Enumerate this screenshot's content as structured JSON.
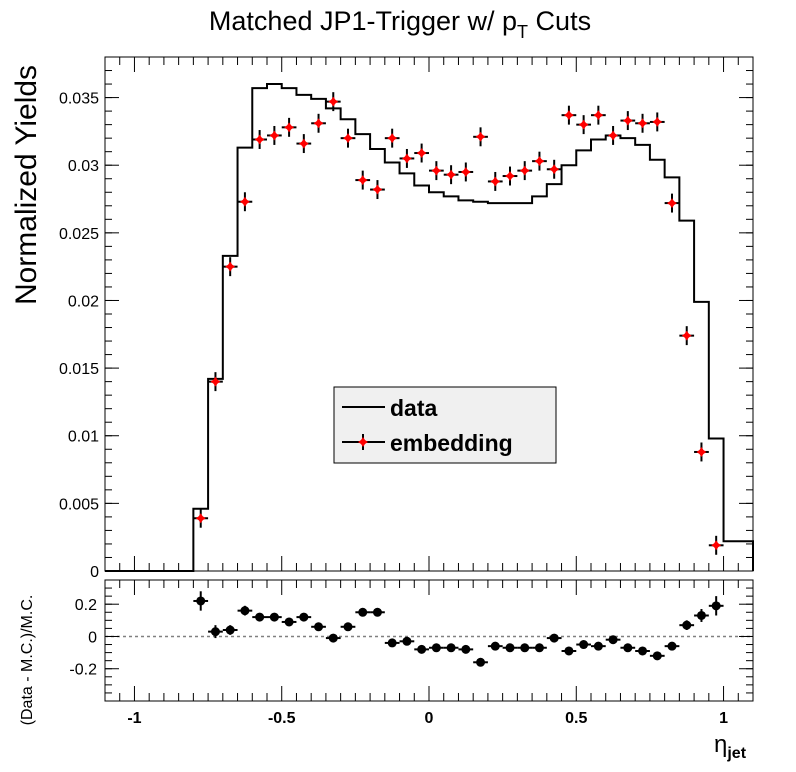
{
  "chart_data": [
    {
      "type": "line",
      "title_main": "Matched JP1-Trigger w/ p",
      "title_sub": "T",
      "title_end": " Cuts",
      "ylabel": "Normalized Yields",
      "xlim": [
        -1.1,
        1.1
      ],
      "ylim": [
        0,
        0.038
      ],
      "y_ticks": [
        0,
        0.005,
        0.01,
        0.015,
        0.02,
        0.025,
        0.03,
        0.035
      ],
      "y_tick_labels": [
        "0",
        "0.005",
        "0.01",
        "0.015",
        "0.02",
        "0.025",
        "0.03",
        "0.035"
      ],
      "legend": {
        "placement": "center",
        "entries": [
          "data",
          "embedding"
        ]
      },
      "series": [
        {
          "name": "data",
          "style": "histogram",
          "color": "#000000",
          "bin_edges": [
            -1.1,
            -0.8,
            -0.75,
            -0.7,
            -0.65,
            -0.6,
            -0.55,
            -0.5,
            -0.45,
            -0.4,
            -0.35,
            -0.3,
            -0.25,
            -0.2,
            -0.15,
            -0.1,
            -0.05,
            0.0,
            0.05,
            0.1,
            0.15,
            0.2,
            0.25,
            0.3,
            0.35,
            0.4,
            0.45,
            0.5,
            0.55,
            0.6,
            0.65,
            0.7,
            0.75,
            0.8,
            0.85,
            0.9,
            0.95,
            1.0,
            1.1
          ],
          "values": [
            0,
            0.0046,
            0.0142,
            0.0233,
            0.0313,
            0.0357,
            0.036,
            0.0357,
            0.0352,
            0.0349,
            0.0342,
            0.0334,
            0.0323,
            0.0312,
            0.0302,
            0.0294,
            0.0285,
            0.028,
            0.0277,
            0.0274,
            0.0273,
            0.0272,
            0.0272,
            0.0272,
            0.0277,
            0.0286,
            0.03,
            0.0311,
            0.0319,
            0.0322,
            0.032,
            0.0315,
            0.0304,
            0.0291,
            0.0259,
            0.0199,
            0.0098,
            0.0022,
            0
          ]
        },
        {
          "name": "embedding",
          "style": "points",
          "color": "#ff0000",
          "x": [
            -0.775,
            -0.725,
            -0.675,
            -0.625,
            -0.575,
            -0.525,
            -0.475,
            -0.425,
            -0.375,
            -0.325,
            -0.275,
            -0.225,
            -0.175,
            -0.125,
            -0.075,
            -0.025,
            0.025,
            0.075,
            0.125,
            0.175,
            0.225,
            0.275,
            0.325,
            0.375,
            0.425,
            0.475,
            0.525,
            0.575,
            0.625,
            0.675,
            0.725,
            0.775,
            0.825,
            0.875,
            0.925,
            0.975
          ],
          "y": [
            0.0039,
            0.014,
            0.0225,
            0.0273,
            0.0319,
            0.0322,
            0.0328,
            0.0316,
            0.0331,
            0.0347,
            0.032,
            0.0289,
            0.0282,
            0.032,
            0.0305,
            0.0309,
            0.0296,
            0.0293,
            0.0295,
            0.0321,
            0.0288,
            0.0292,
            0.0296,
            0.0303,
            0.0297,
            0.0337,
            0.033,
            0.0337,
            0.0322,
            0.0333,
            0.0331,
            0.0332,
            0.0272,
            0.0174,
            0.0088,
            0.0019
          ],
          "yerr": 0.0007
        }
      ]
    },
    {
      "type": "scatter",
      "ylabel": "(Data - M.C.)/M.C.",
      "xlabel_main": "η",
      "xlabel_sub": "jet",
      "xlim": [
        -1.1,
        1.1
      ],
      "ylim": [
        -0.4,
        0.35
      ],
      "x_ticks": [
        -1,
        -0.5,
        0,
        0.5,
        1
      ],
      "x_tick_labels": [
        "-1",
        "-0.5",
        "0",
        "0.5",
        "1"
      ],
      "y_ticks": [
        -0.2,
        0,
        0.2
      ],
      "y_tick_labels": [
        "-0.2",
        "0",
        "0.2"
      ],
      "reference_line": 0,
      "series": [
        {
          "name": "ratio",
          "color": "#000000",
          "x": [
            -0.775,
            -0.725,
            -0.675,
            -0.625,
            -0.575,
            -0.525,
            -0.475,
            -0.425,
            -0.375,
            -0.325,
            -0.275,
            -0.225,
            -0.175,
            -0.125,
            -0.075,
            -0.025,
            0.025,
            0.075,
            0.125,
            0.175,
            0.225,
            0.275,
            0.325,
            0.375,
            0.425,
            0.475,
            0.525,
            0.575,
            0.625,
            0.675,
            0.725,
            0.775,
            0.825,
            0.875,
            0.925,
            0.975
          ],
          "y": [
            0.22,
            0.03,
            0.04,
            0.16,
            0.12,
            0.12,
            0.09,
            0.12,
            0.06,
            -0.01,
            0.06,
            0.15,
            0.15,
            -0.04,
            -0.03,
            -0.08,
            -0.07,
            -0.07,
            -0.08,
            -0.16,
            -0.06,
            -0.07,
            -0.07,
            -0.07,
            -0.01,
            -0.09,
            -0.05,
            -0.06,
            -0.02,
            -0.07,
            -0.09,
            -0.12,
            -0.06,
            0.07,
            0.13,
            0.19
          ],
          "yerr": [
            0.06,
            0.04,
            0.03,
            0.03,
            0.025,
            0.025,
            0.025,
            0.025,
            0.025,
            0.025,
            0.025,
            0.025,
            0.025,
            0.025,
            0.025,
            0.025,
            0.025,
            0.025,
            0.025,
            0.025,
            0.025,
            0.025,
            0.025,
            0.025,
            0.025,
            0.025,
            0.025,
            0.025,
            0.025,
            0.025,
            0.025,
            0.025,
            0.025,
            0.03,
            0.04,
            0.06
          ]
        }
      ]
    }
  ]
}
